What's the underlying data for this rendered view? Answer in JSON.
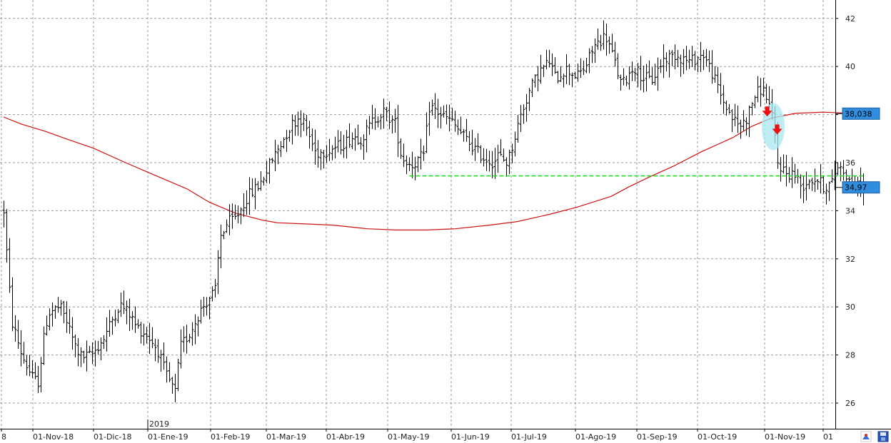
{
  "chart_data": {
    "type": "ohlc",
    "title": "",
    "xlabel": "",
    "ylabel": "",
    "ylim": [
      25,
      42.7
    ],
    "yticks": [
      26,
      28,
      30,
      32,
      34,
      36,
      38,
      40,
      42
    ],
    "grid": true,
    "x_tick_labels": [
      "8",
      "01-Nov-18",
      "01-Dic-18",
      "01-Ene-19",
      "01-Feb-19",
      "01-Mar-19",
      "01-Abr-19",
      "01-May-19",
      "01-Jun-19",
      "01-Jul-19",
      "01-Ago-19",
      "01-Sep-19",
      "01-Oct-19",
      "01-Nov-19",
      "01"
    ],
    "year_label": "2019",
    "price_badges": [
      {
        "label": "38,038",
        "value": 38.038,
        "color": "#2f8ee0"
      },
      {
        "label": "34,97",
        "value": 34.97,
        "color": "#2f8ee0"
      }
    ],
    "colors": {
      "bars": "#000000",
      "moving_average": "#cc1111",
      "support_line": "#22dd22",
      "highlight": "#a8e8f0",
      "arrows": "#ee1111",
      "grid": "#9a9a9a"
    },
    "support_level": {
      "value": 35.45,
      "from": "2019-04-22",
      "to": "2019-12-05"
    },
    "highlight_date": "2019-10-21",
    "arrows": [
      {
        "date": "2019-10-18",
        "value": 38.1
      },
      {
        "date": "2019-10-23",
        "value": 37.35
      }
    ],
    "moving_average": [
      [
        "2018-10-01",
        37.9
      ],
      [
        "2018-10-10",
        37.6
      ],
      [
        "2018-10-22",
        37.3
      ],
      [
        "2018-11-01",
        37.0
      ],
      [
        "2018-11-15",
        36.6
      ],
      [
        "2018-12-01",
        36.0
      ],
      [
        "2018-12-15",
        35.5
      ],
      [
        "2019-01-01",
        34.9
      ],
      [
        "2019-01-12",
        34.35
      ],
      [
        "2019-01-25",
        33.9
      ],
      [
        "2019-02-08",
        33.6
      ],
      [
        "2019-02-15",
        33.5
      ],
      [
        "2019-03-01",
        33.45
      ],
      [
        "2019-03-15",
        33.4
      ],
      [
        "2019-04-01",
        33.25
      ],
      [
        "2019-04-15",
        33.2
      ],
      [
        "2019-05-01",
        33.2
      ],
      [
        "2019-05-15",
        33.25
      ],
      [
        "2019-06-01",
        33.4
      ],
      [
        "2019-06-15",
        33.55
      ],
      [
        "2019-07-01",
        33.85
      ],
      [
        "2019-07-15",
        34.15
      ],
      [
        "2019-08-01",
        34.6
      ],
      [
        "2019-08-10",
        35.0
      ],
      [
        "2019-08-20",
        35.4
      ],
      [
        "2019-09-01",
        35.85
      ],
      [
        "2019-09-15",
        36.45
      ],
      [
        "2019-10-01",
        37.05
      ],
      [
        "2019-10-10",
        37.5
      ],
      [
        "2019-10-20",
        37.85
      ],
      [
        "2019-11-01",
        38.05
      ],
      [
        "2019-11-15",
        38.1
      ],
      [
        "2019-12-05",
        38.04
      ]
    ],
    "price_path": [
      [
        "2018-10-01",
        34.0
      ],
      [
        "2018-10-03",
        31.6
      ],
      [
        "2018-10-05",
        29.4
      ],
      [
        "2018-10-10",
        28.0
      ],
      [
        "2018-10-15",
        27.1
      ],
      [
        "2018-10-18",
        26.8
      ],
      [
        "2018-10-22",
        29.3
      ],
      [
        "2018-10-24",
        29.8
      ],
      [
        "2018-10-29",
        30.0
      ],
      [
        "2018-11-01",
        29.5
      ],
      [
        "2018-11-06",
        28.3
      ],
      [
        "2018-11-09",
        27.9
      ],
      [
        "2018-11-14",
        28.0
      ],
      [
        "2018-11-20",
        28.7
      ],
      [
        "2018-11-26",
        29.8
      ],
      [
        "2018-11-28",
        30.1
      ],
      [
        "2018-12-03",
        29.7
      ],
      [
        "2018-12-06",
        29.2
      ],
      [
        "2018-12-12",
        28.8
      ],
      [
        "2018-12-17",
        28.2
      ],
      [
        "2018-12-21",
        27.2
      ],
      [
        "2018-12-26",
        26.4
      ],
      [
        "2018-12-28",
        28.3
      ],
      [
        "2019-01-02",
        28.9
      ],
      [
        "2019-01-07",
        29.8
      ],
      [
        "2019-01-11",
        30.3
      ],
      [
        "2019-01-15",
        30.7
      ],
      [
        "2019-01-17",
        32.9
      ],
      [
        "2019-01-21",
        33.5
      ],
      [
        "2019-01-25",
        33.7
      ],
      [
        "2019-01-31",
        34.6
      ],
      [
        "2019-02-06",
        35.1
      ],
      [
        "2019-02-12",
        36.1
      ],
      [
        "2019-02-18",
        37.0
      ],
      [
        "2019-02-22",
        37.6
      ],
      [
        "2019-02-26",
        37.9
      ],
      [
        "2019-03-01",
        37.5
      ],
      [
        "2019-03-06",
        36.4
      ],
      [
        "2019-03-11",
        36.5
      ],
      [
        "2019-03-18",
        36.7
      ],
      [
        "2019-03-25",
        37.1
      ],
      [
        "2019-03-29",
        37.0
      ],
      [
        "2019-04-04",
        37.8
      ],
      [
        "2019-04-09",
        38.1
      ],
      [
        "2019-04-15",
        37.6
      ],
      [
        "2019-04-18",
        36.2
      ],
      [
        "2019-04-23",
        35.9
      ],
      [
        "2019-04-29",
        36.3
      ],
      [
        "2019-05-02",
        38.4
      ],
      [
        "2019-05-06",
        38.1
      ],
      [
        "2019-05-13",
        37.7
      ],
      [
        "2019-05-17",
        37.3
      ],
      [
        "2019-05-23",
        36.7
      ],
      [
        "2019-05-29",
        36.2
      ],
      [
        "2019-06-03",
        36.0
      ],
      [
        "2019-06-05",
        36.3
      ],
      [
        "2019-06-10",
        36.0
      ],
      [
        "2019-06-13",
        36.9
      ],
      [
        "2019-06-17",
        38.1
      ],
      [
        "2019-06-21",
        39.0
      ],
      [
        "2019-06-26",
        39.8
      ],
      [
        "2019-07-01",
        40.2
      ],
      [
        "2019-07-04",
        39.5
      ],
      [
        "2019-07-09",
        39.9
      ],
      [
        "2019-07-15",
        39.6
      ],
      [
        "2019-07-19",
        40.0
      ],
      [
        "2019-07-23",
        40.8
      ],
      [
        "2019-07-29",
        41.3
      ],
      [
        "2019-08-01",
        40.6
      ],
      [
        "2019-08-06",
        39.2
      ],
      [
        "2019-08-12",
        40.0
      ],
      [
        "2019-08-16",
        39.6
      ],
      [
        "2019-08-21",
        39.4
      ],
      [
        "2019-08-27",
        40.3
      ],
      [
        "2019-09-02",
        40.5
      ],
      [
        "2019-09-09",
        40.2
      ],
      [
        "2019-09-16",
        40.5
      ],
      [
        "2019-09-20",
        39.8
      ],
      [
        "2019-09-25",
        38.7
      ],
      [
        "2019-09-30",
        37.9
      ],
      [
        "2019-10-04",
        37.5
      ],
      [
        "2019-10-08",
        37.9
      ],
      [
        "2019-10-11",
        38.7
      ],
      [
        "2019-10-15",
        39.1
      ],
      [
        "2019-10-18",
        38.7
      ],
      [
        "2019-10-21",
        37.6
      ],
      [
        "2019-10-23",
        36.0
      ],
      [
        "2019-10-28",
        35.5
      ],
      [
        "2019-10-31",
        35.6
      ],
      [
        "2019-11-04",
        35.0
      ],
      [
        "2019-11-08",
        35.3
      ],
      [
        "2019-11-12",
        35.3
      ],
      [
        "2019-11-15",
        35.0
      ],
      [
        "2019-11-19",
        35.1
      ],
      [
        "2019-11-22",
        35.9
      ],
      [
        "2019-11-26",
        35.6
      ],
      [
        "2019-11-29",
        35.0
      ],
      [
        "2019-12-05",
        34.97
      ]
    ]
  },
  "toolbar": {
    "icons": [
      "chart-settings-icon",
      "save-disk-icon"
    ]
  }
}
